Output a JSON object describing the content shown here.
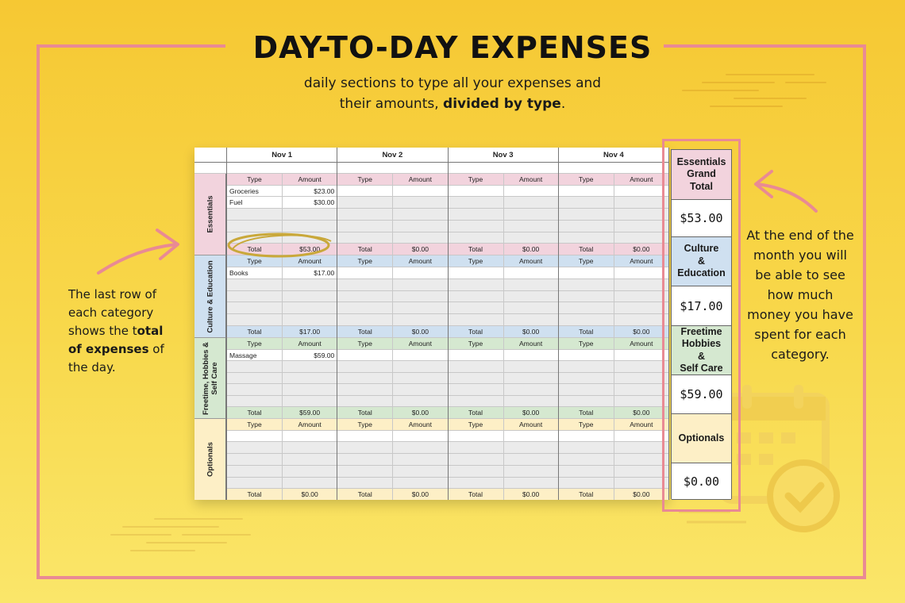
{
  "title": "DAY-TO-DAY EXPENSES",
  "subtitle": {
    "line1": "daily sections to type all your expenses and",
    "line2_plain": "their amounts, ",
    "line2_bold": "divided by type",
    "line2_end": "."
  },
  "note_left": {
    "part1": "The last row of each category shows the t",
    "bold": "otal of expenses",
    "part2": " of the day."
  },
  "note_right": "At the end of the month you will be able to see how much money you have spent for each category.",
  "sheet": {
    "days": [
      "Nov 1",
      "Nov 2",
      "Nov 3",
      "Nov 4"
    ],
    "type_label": "Type",
    "amount_label": "Amount",
    "total_label": "Total",
    "categories": [
      {
        "name": "Essentials",
        "color": "#f2d3dd",
        "head_color": "#f2d3dd",
        "rows": [
          [
            "Groceries",
            "$23.00"
          ],
          [
            "Fuel",
            "$30.00"
          ],
          [
            "",
            ""
          ],
          [
            "",
            ""
          ],
          [
            "",
            ""
          ]
        ],
        "totals": [
          "$53.00",
          "$0.00",
          "$0.00",
          "$0.00"
        ]
      },
      {
        "name": "Culture & Education",
        "color": "#cfe0f0",
        "head_color": "#cfe0f0",
        "rows": [
          [
            "Books",
            "$17.00"
          ],
          [
            "",
            ""
          ],
          [
            "",
            ""
          ],
          [
            "",
            ""
          ],
          [
            "",
            ""
          ]
        ],
        "totals": [
          "$17.00",
          "$0.00",
          "$0.00",
          "$0.00"
        ]
      },
      {
        "name": "Freetime, Hobbies & Self Care",
        "color": "#d5e8d0",
        "head_color": "#d5e8d0",
        "rows": [
          [
            "Massage",
            "$59.00"
          ],
          [
            "",
            ""
          ],
          [
            "",
            ""
          ],
          [
            "",
            ""
          ],
          [
            "",
            ""
          ]
        ],
        "totals": [
          "$59.00",
          "$0.00",
          "$0.00",
          "$0.00"
        ]
      },
      {
        "name": "Optionals",
        "color": "#fdefc6",
        "head_color": "#fdefc6",
        "rows": [
          [
            "",
            ""
          ],
          [
            "",
            ""
          ],
          [
            "",
            ""
          ],
          [
            "",
            ""
          ],
          [
            "",
            ""
          ]
        ],
        "totals": [
          "$0.00",
          "$0.00",
          "$0.00",
          "$0.00"
        ]
      }
    ]
  },
  "grand_totals": [
    {
      "label": "Essentials Grand Total",
      "value": "$53.00",
      "color": "#f2d3dd"
    },
    {
      "label": "Culture & Education",
      "value": "$17.00",
      "color": "#cfe0f0"
    },
    {
      "label": "Freetime Hobbies & Self Care",
      "value": "$59.00",
      "color": "#d5e8d0"
    },
    {
      "label": "Optionals",
      "value": "$0.00",
      "color": "#fdefc6"
    }
  ],
  "colors": {
    "background": "#f6c833",
    "frame": "#e98a94",
    "highlight_circle": "#c9a83a"
  },
  "icons": [
    "calendar-check-icon",
    "arrow-left-icon",
    "arrow-right-icon"
  ]
}
